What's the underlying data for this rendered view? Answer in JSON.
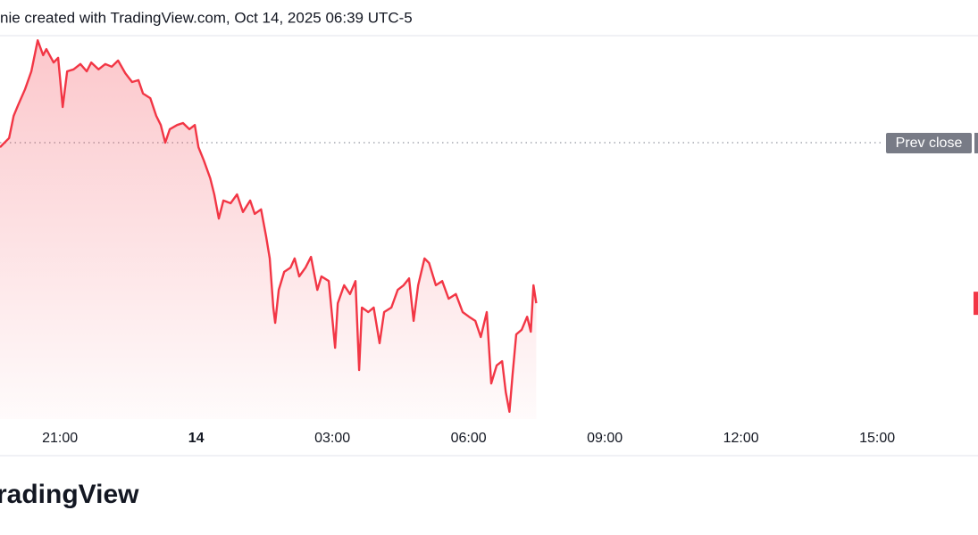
{
  "chart_data": {
    "type": "area-line",
    "header": "nie created with TradingView.com, Oct 14, 2025 06:39 UTC-5",
    "footer": "radingView",
    "prev_close_label": "Prev close",
    "prev_close": 72.1,
    "color": "#f23645",
    "xlim": [
      19.68,
      41.22
    ],
    "ylim": [
      0,
      100
    ],
    "xticks": [
      {
        "value": 21,
        "label": "21:00"
      },
      {
        "value": 24,
        "label": "14"
      },
      {
        "value": 27,
        "label": "03:00"
      },
      {
        "value": 30,
        "label": "06:00"
      },
      {
        "value": 33,
        "label": "09:00"
      },
      {
        "value": 36,
        "label": "12:00"
      },
      {
        "value": 39,
        "label": "15:00"
      }
    ],
    "x": [
      19.68,
      19.88,
      19.98,
      20.08,
      20.23,
      20.37,
      20.51,
      20.63,
      20.7,
      20.86,
      20.96,
      21.06,
      21.16,
      21.3,
      21.45,
      21.59,
      21.69,
      21.85,
      22.0,
      22.14,
      22.28,
      22.44,
      22.59,
      22.73,
      22.83,
      22.99,
      23.12,
      23.22,
      23.32,
      23.42,
      23.58,
      23.71,
      23.85,
      23.97,
      24.05,
      24.17,
      24.31,
      24.4,
      24.5,
      24.6,
      24.76,
      24.9,
      25.03,
      25.19,
      25.29,
      25.43,
      25.54,
      25.62,
      25.7,
      25.74,
      25.82,
      25.94,
      26.08,
      26.17,
      26.27,
      26.41,
      26.53,
      26.67,
      26.76,
      26.92,
      27.06,
      27.12,
      27.26,
      27.39,
      27.51,
      27.59,
      27.65,
      27.79,
      27.91,
      28.04,
      28.14,
      28.3,
      28.44,
      28.57,
      28.69,
      28.79,
      28.89,
      29.03,
      29.13,
      29.28,
      29.42,
      29.56,
      29.72,
      29.87,
      30.01,
      30.15,
      30.27,
      30.4,
      30.5,
      30.62,
      30.74,
      30.82,
      30.9,
      30.97,
      31.05,
      31.17,
      31.29,
      31.37,
      31.43,
      31.49
    ],
    "values": [
      70.9,
      73.3,
      79.1,
      81.9,
      86.0,
      90.7,
      98.8,
      94.9,
      96.5,
      93.0,
      94.2,
      81.4,
      90.7,
      91.2,
      92.6,
      90.7,
      93.0,
      91.2,
      92.6,
      91.9,
      93.5,
      90.2,
      87.9,
      88.4,
      84.9,
      83.7,
      79.1,
      76.7,
      72.1,
      75.6,
      76.7,
      77.2,
      75.6,
      76.7,
      70.9,
      67.4,
      62.8,
      58.6,
      52.3,
      57.0,
      56.3,
      58.6,
      54.0,
      57.0,
      53.5,
      54.7,
      47.7,
      41.9,
      29.1,
      25.1,
      33.7,
      38.4,
      39.5,
      41.9,
      37.2,
      39.5,
      42.3,
      33.7,
      37.2,
      36.0,
      18.6,
      30.2,
      34.9,
      32.6,
      36.0,
      12.8,
      29.1,
      27.9,
      29.1,
      19.8,
      27.9,
      29.1,
      33.7,
      34.9,
      36.7,
      25.6,
      34.9,
      41.9,
      40.7,
      34.9,
      36.0,
      31.4,
      32.6,
      27.9,
      26.7,
      25.6,
      21.4,
      27.9,
      9.3,
      14.0,
      15.1,
      7.0,
      1.9,
      11.6,
      22.1,
      23.3,
      26.7,
      22.8,
      34.9,
      30.2
    ]
  }
}
